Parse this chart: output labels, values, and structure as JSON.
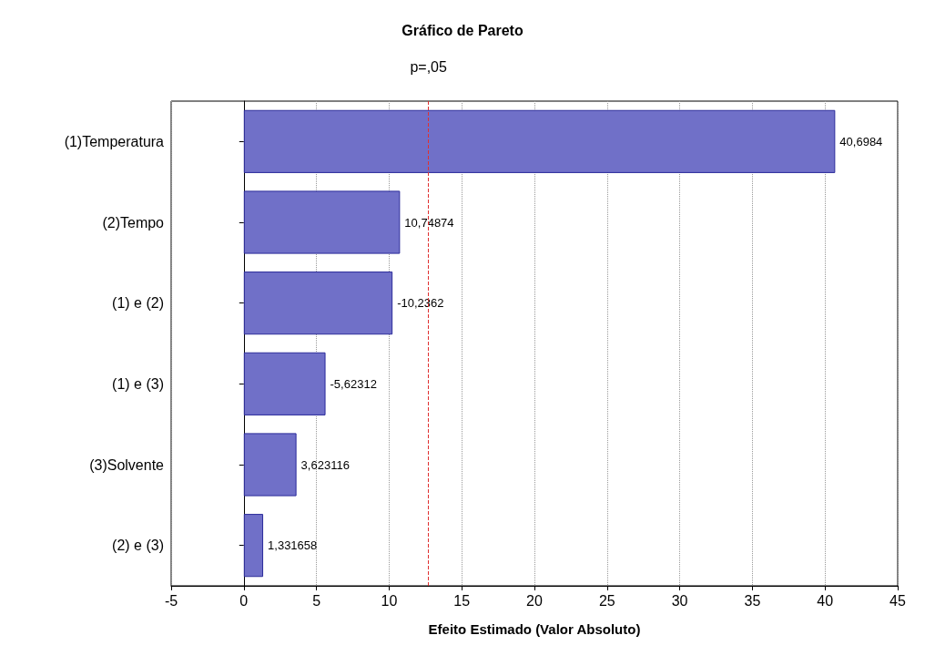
{
  "chart_data": {
    "type": "bar",
    "orientation": "horizontal",
    "title": "Gráfico de Pareto",
    "xlabel": "Efeito Estimado (Valor Absoluto)",
    "categories": [
      "(1)Temperatura",
      "(2)Tempo",
      "(1) e (2)",
      "(1) e (3)",
      "(3)Solvente",
      "(2) e (3)"
    ],
    "values": [
      40.6984,
      10.74874,
      10.2362,
      5.62312,
      3.623116,
      1.331658
    ],
    "value_labels": [
      "40,6984",
      "10,74874",
      "-10,2362",
      "-5,62312",
      "3,623116",
      "1,331658"
    ],
    "color": "#7070c8",
    "xlim": [
      -5,
      45
    ],
    "xticks": [
      -5,
      0,
      5,
      10,
      15,
      20,
      25,
      30,
      35,
      40,
      45
    ],
    "ref_lines": [
      {
        "axis": "x",
        "value": 12.71,
        "label": "p=,05",
        "color": "#e03030",
        "line_style": "dashed"
      }
    ],
    "grid": "x"
  }
}
